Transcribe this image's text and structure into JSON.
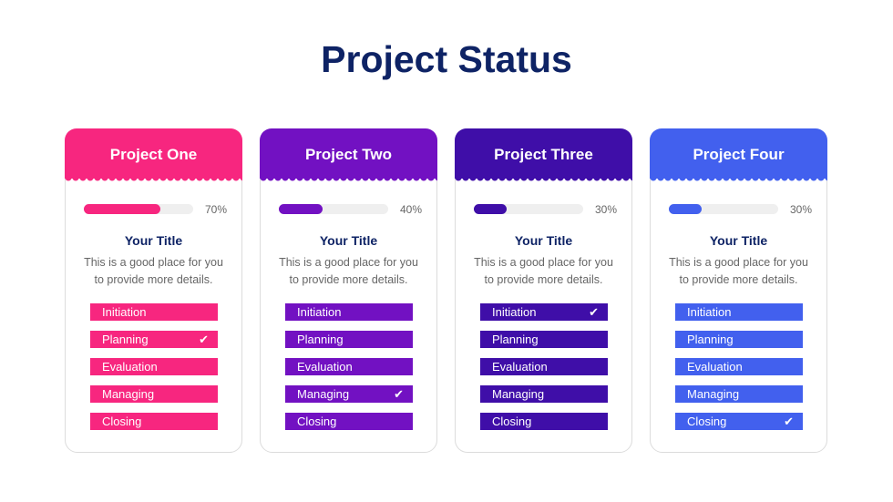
{
  "title": "Project Status",
  "cards": [
    {
      "name": "Project One",
      "color": "#f7267f",
      "progress": 70,
      "progress_label": "70%",
      "subtitle": "Your Title",
      "description": "This is a good place for you to provide more details.",
      "stages": [
        "Initiation",
        "Planning",
        "Evaluation",
        "Managing",
        "Closing"
      ],
      "checked_stage": "Planning"
    },
    {
      "name": "Project Two",
      "color": "#7211c2",
      "progress": 40,
      "progress_label": "40%",
      "subtitle": "Your Title",
      "description": "This is a good place for you to provide more details.",
      "stages": [
        "Initiation",
        "Planning",
        "Evaluation",
        "Managing",
        "Closing"
      ],
      "checked_stage": "Managing"
    },
    {
      "name": "Project Three",
      "color": "#3f0ea8",
      "progress": 30,
      "progress_label": "30%",
      "subtitle": "Your Title",
      "description": "This is a good place for you to provide more details.",
      "stages": [
        "Initiation",
        "Planning",
        "Evaluation",
        "Managing",
        "Closing"
      ],
      "checked_stage": "Initiation"
    },
    {
      "name": "Project Four",
      "color": "#4260ee",
      "progress": 30,
      "progress_label": "30%",
      "subtitle": "Your Title",
      "description": "This is a good place for you to provide more details.",
      "stages": [
        "Initiation",
        "Planning",
        "Evaluation",
        "Managing",
        "Closing"
      ],
      "checked_stage": "Closing"
    }
  ]
}
